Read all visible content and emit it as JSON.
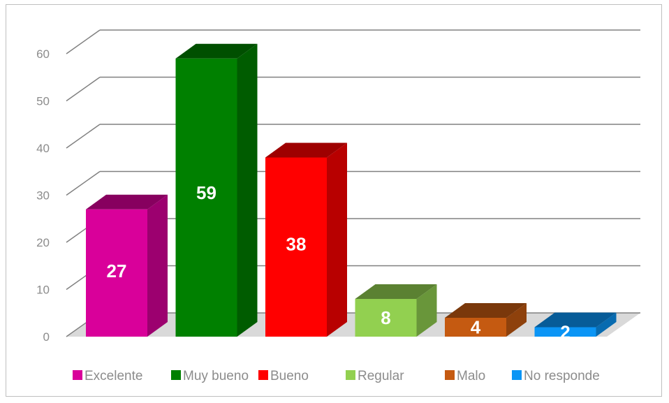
{
  "chart_data": {
    "type": "bar",
    "categories": [
      "Excelente",
      "Muy bueno",
      "Bueno",
      "Regular",
      "Malo",
      "No responde"
    ],
    "values": [
      27,
      59,
      38,
      8,
      4,
      2
    ],
    "colors": [
      "#d9009a",
      "#008000",
      "#ff0000",
      "#92d050",
      "#c55a11",
      "#0b95f5"
    ],
    "title": "",
    "xlabel": "",
    "ylabel": "",
    "ylim": [
      0,
      60
    ],
    "yticks": [
      "0",
      "10",
      "20",
      "30",
      "40",
      "50",
      "60"
    ],
    "grid": true,
    "three_d": true,
    "legend_position": "bottom",
    "data_labels": [
      "27",
      "59",
      "38",
      "8",
      "4",
      "2"
    ]
  }
}
